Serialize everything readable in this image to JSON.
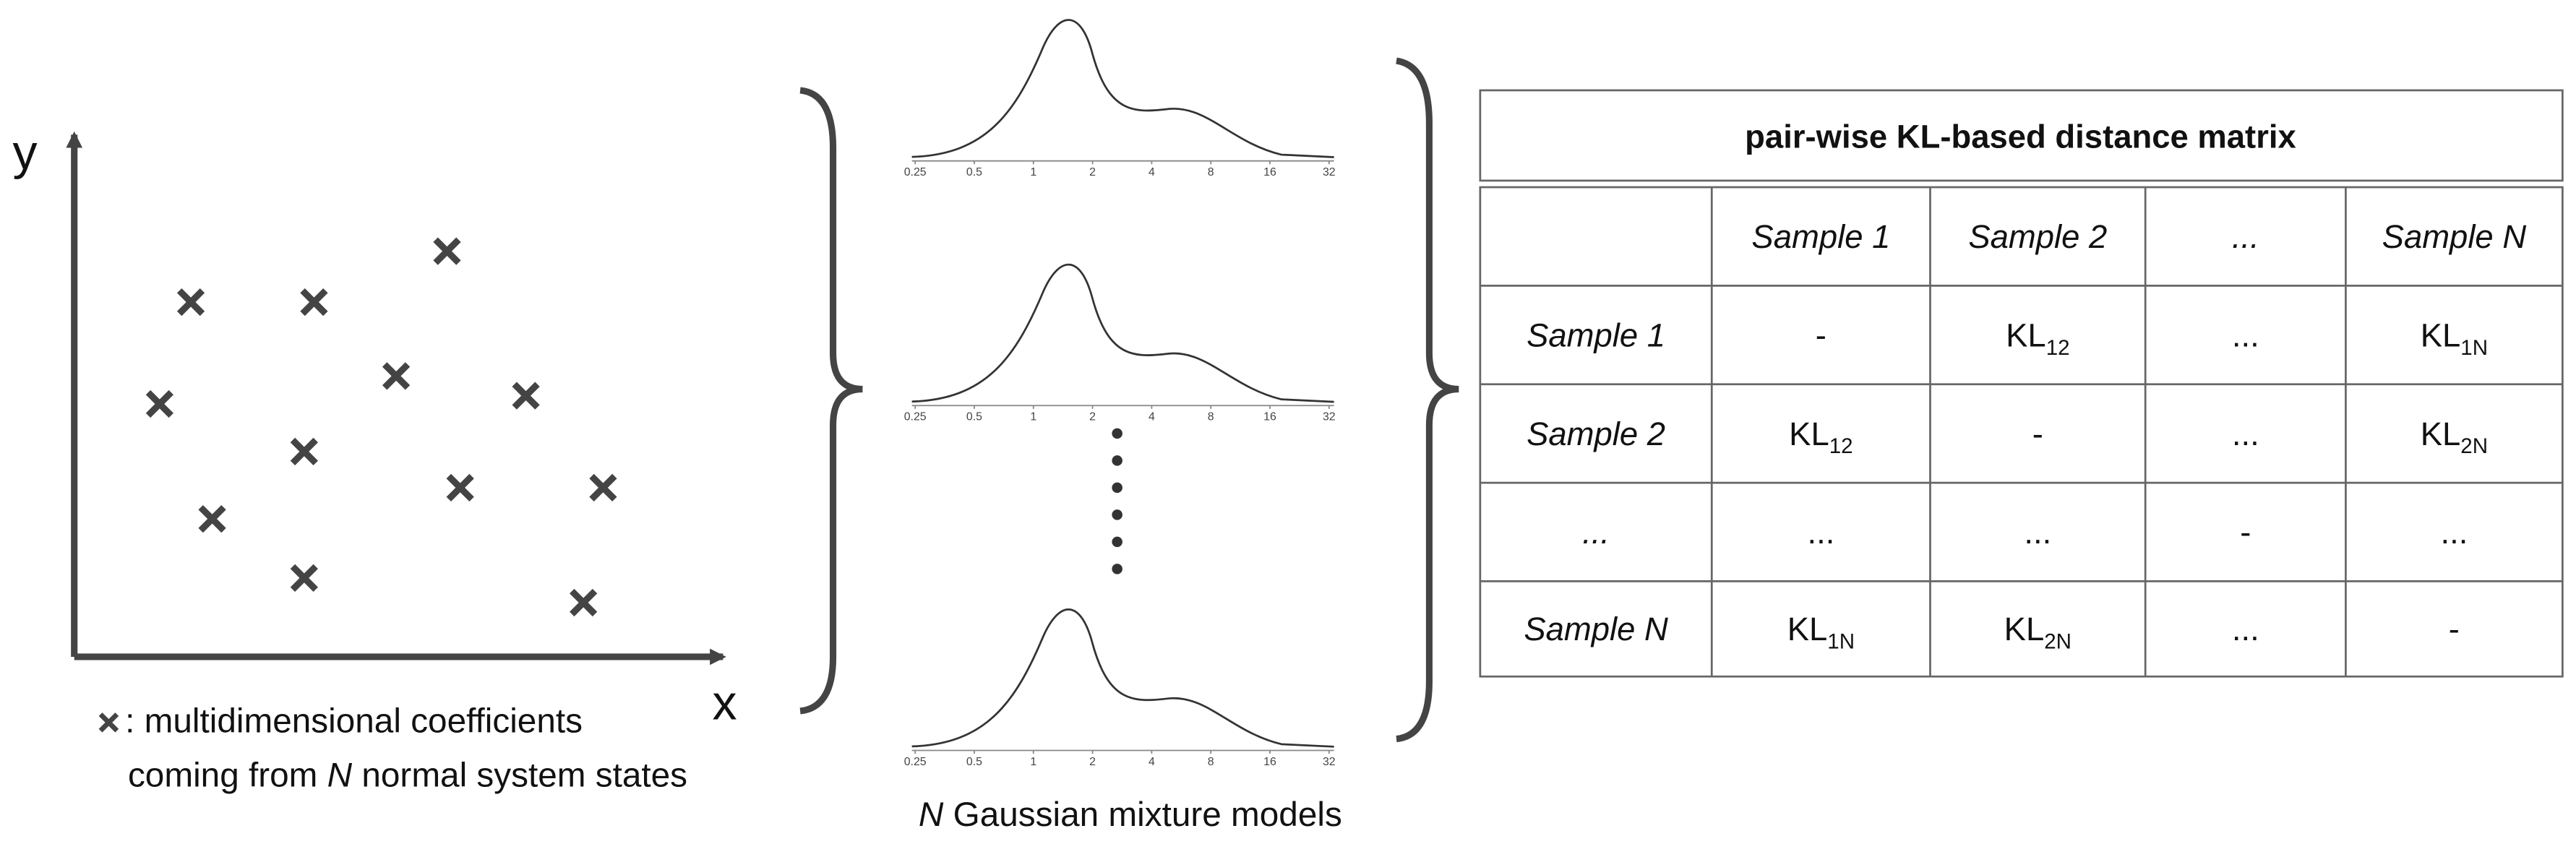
{
  "axes": {
    "x_label": "x",
    "y_label": "y"
  },
  "legend": {
    "line1": ": multidimensional coefficients",
    "line2_before": "coming from ",
    "line2_italic": "N",
    "line2_after": " normal system states"
  },
  "density_axis_ticks": [
    "0.25",
    "0.5",
    "1",
    "2",
    "4",
    "8",
    "16",
    "32"
  ],
  "caption": {
    "italic": "N",
    "text": " Gaussian mixture models"
  },
  "table": {
    "title": "pair-wise KL-based distance matrix",
    "columns": [
      "Sample  1",
      "Sample  2",
      "...",
      "Sample N"
    ],
    "rows": [
      {
        "label": "Sample  1",
        "cells": [
          "-",
          {
            "base": "KL",
            "sub": "12"
          },
          "...",
          {
            "base": "KL",
            "sub": "1N"
          }
        ]
      },
      {
        "label": "Sample  2",
        "cells": [
          {
            "base": "KL",
            "sub": "12"
          },
          "-",
          "...",
          {
            "base": "KL",
            "sub": "2N"
          }
        ]
      },
      {
        "label": "...",
        "cells": [
          "...",
          "...",
          "-",
          "..."
        ]
      },
      {
        "label": "Sample N",
        "cells": [
          {
            "base": "KL",
            "sub": "1N"
          },
          {
            "base": "KL",
            "sub": "2N"
          },
          "...",
          "-"
        ]
      }
    ]
  }
}
